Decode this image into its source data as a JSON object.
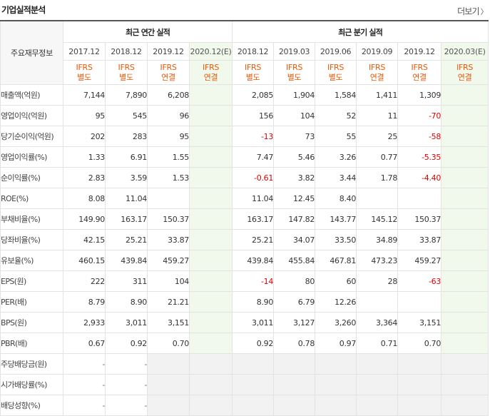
{
  "title": "기업실적분석",
  "more": "더보기",
  "colors": {
    "accent_orange": "#e55a0a",
    "negative": "#e00000",
    "estimate_bg": "#f0f9ec",
    "empty_bg": "#f2f2f2"
  },
  "header": {
    "metric_col": "주요재무정보",
    "annual_group": "최근 연간 실적",
    "quarter_group": "최근 분기 실적",
    "annual_dates": [
      "2017.12",
      "2018.12",
      "2019.12",
      "2020.12(E)"
    ],
    "quarter_dates": [
      "2018.12",
      "2019.03",
      "2019.06",
      "2019.09",
      "2019.12",
      "2020.03(E)"
    ],
    "annual_ifrs": [
      [
        "IFRS",
        "별도"
      ],
      [
        "IFRS",
        "별도"
      ],
      [
        "IFRS",
        "연결"
      ],
      [
        "IFRS",
        "연결"
      ]
    ],
    "quarter_ifrs": [
      [
        "IFRS",
        "별도"
      ],
      [
        "IFRS",
        "별도"
      ],
      [
        "IFRS",
        "별도"
      ],
      [
        "IFRS",
        "연결"
      ],
      [
        "IFRS",
        "연결"
      ],
      [
        "IFRS",
        "연결"
      ]
    ]
  },
  "rows": [
    {
      "label": "매출액(억원)",
      "annual": [
        "7,144",
        "7,890",
        "6,208",
        ""
      ],
      "quarter": [
        "2,085",
        "1,904",
        "1,584",
        "1,411",
        "1,309",
        ""
      ]
    },
    {
      "label": "영업이익(억원)",
      "annual": [
        "95",
        "545",
        "96",
        ""
      ],
      "quarter": [
        "156",
        "104",
        "52",
        "11",
        "-70",
        ""
      ]
    },
    {
      "label": "당기순이익(억원)",
      "annual": [
        "202",
        "283",
        "95",
        ""
      ],
      "quarter": [
        "-13",
        "73",
        "55",
        "25",
        "-58",
        ""
      ]
    },
    {
      "label": "영업이익률(%)",
      "annual": [
        "1.33",
        "6.91",
        "1.55",
        ""
      ],
      "quarter": [
        "7.47",
        "5.46",
        "3.26",
        "0.77",
        "-5.35",
        ""
      ]
    },
    {
      "label": "순이익률(%)",
      "annual": [
        "2.83",
        "3.59",
        "1.53",
        ""
      ],
      "quarter": [
        "-0.61",
        "3.82",
        "3.44",
        "1.78",
        "-4.40",
        ""
      ]
    },
    {
      "label": "ROE(%)",
      "annual": [
        "8.08",
        "11.04",
        "",
        ""
      ],
      "quarter": [
        "11.04",
        "12.45",
        "8.40",
        "",
        "",
        ""
      ]
    },
    {
      "label": "부채비율(%)",
      "annual": [
        "149.90",
        "163.17",
        "150.37",
        ""
      ],
      "quarter": [
        "163.17",
        "147.82",
        "143.77",
        "145.12",
        "150.37",
        ""
      ]
    },
    {
      "label": "당좌비율(%)",
      "annual": [
        "42.15",
        "25.21",
        "33.87",
        ""
      ],
      "quarter": [
        "25.21",
        "34.07",
        "33.50",
        "34.89",
        "33.87",
        ""
      ]
    },
    {
      "label": "유보율(%)",
      "annual": [
        "460.15",
        "439.84",
        "459.27",
        ""
      ],
      "quarter": [
        "439.84",
        "455.84",
        "467.81",
        "473.23",
        "459.27",
        ""
      ]
    },
    {
      "label": "EPS(원)",
      "annual": [
        "222",
        "311",
        "104",
        ""
      ],
      "quarter": [
        "-14",
        "80",
        "60",
        "28",
        "-63",
        ""
      ]
    },
    {
      "label": "PER(배)",
      "annual": [
        "8.79",
        "8.90",
        "21.21",
        ""
      ],
      "quarter": [
        "8.90",
        "6.79",
        "12.26",
        "",
        "",
        ""
      ]
    },
    {
      "label": "BPS(원)",
      "annual": [
        "2,933",
        "3,011",
        "3,151",
        ""
      ],
      "quarter": [
        "3,011",
        "3,127",
        "3,260",
        "3,364",
        "3,151",
        ""
      ]
    },
    {
      "label": "PBR(배)",
      "annual": [
        "0.67",
        "0.92",
        "0.70",
        ""
      ],
      "quarter": [
        "0.92",
        "0.78",
        "0.97",
        "0.71",
        "0.70",
        ""
      ]
    },
    {
      "label": "주당배당금(원)",
      "annual": [
        "-",
        "-",
        "",
        ""
      ],
      "quarter": [
        "",
        "",
        "",
        "",
        "",
        ""
      ],
      "empty_annual_from": 2,
      "empty_quarter": true
    },
    {
      "label": "시가배당률(%)",
      "annual": [
        "-",
        "-",
        "",
        ""
      ],
      "quarter": [
        "",
        "",
        "",
        "",
        "",
        ""
      ],
      "empty_annual_from": 2,
      "empty_quarter": true
    },
    {
      "label": "배당성향(%)",
      "annual": [
        "-",
        "-",
        "",
        ""
      ],
      "quarter": [
        "",
        "",
        "",
        "",
        "",
        ""
      ],
      "empty_annual_from": 2,
      "empty_quarter": true
    }
  ]
}
